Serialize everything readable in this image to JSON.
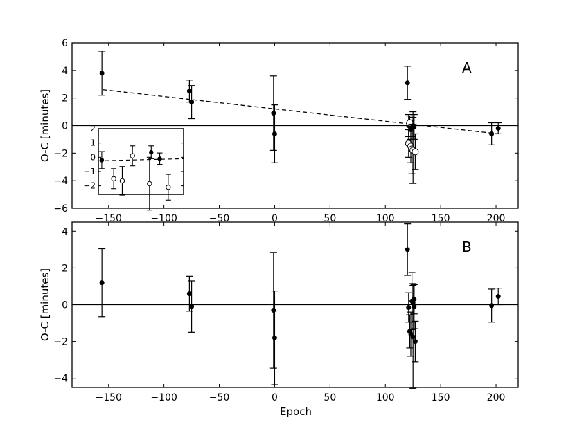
{
  "chart_data": [
    {
      "type": "scatter",
      "panel_label": "A",
      "xlabel": "",
      "ylabel": "O-C [minutes]",
      "xlim": [
        -183,
        220
      ],
      "ylim": [
        -6,
        6
      ],
      "xticks": [
        -150,
        -100,
        -50,
        0,
        50,
        100,
        150,
        200
      ],
      "yticks": [
        -6,
        -4,
        -2,
        0,
        2,
        4,
        6
      ],
      "zero_line": true,
      "fit_line": {
        "style": "dashed",
        "x": [
          -155,
          202
        ],
        "y": [
          2.6,
          -0.6
        ]
      },
      "series": [
        {
          "marker": "filled",
          "points": [
            {
              "x": -156,
              "y": 3.8,
              "err": 1.6
            },
            {
              "x": -77,
              "y": 2.5,
              "err": 0.8
            },
            {
              "x": -75,
              "y": 1.7,
              "err": 1.2
            },
            {
              "x": -1,
              "y": 0.9,
              "err": 2.7
            },
            {
              "x": 0,
              "y": -0.6,
              "err": 2.1
            },
            {
              "x": 120,
              "y": 3.1,
              "err": 1.2
            },
            {
              "x": 121,
              "y": 0.0,
              "err": 0.8
            },
            {
              "x": 123,
              "y": -0.3,
              "err": 0.7
            },
            {
              "x": 124,
              "y": -0.2,
              "err": 0.6
            },
            {
              "x": 125,
              "y": 0.0,
              "err": 1.0
            },
            {
              "x": 126,
              "y": -0.1,
              "err": 0.9
            },
            {
              "x": 196,
              "y": -0.6,
              "err": 0.8
            },
            {
              "x": 202,
              "y": -0.2,
              "err": 0.4
            }
          ]
        },
        {
          "marker": "open",
          "points": [
            {
              "x": 122,
              "y": 0.2,
              "err": 0.5
            },
            {
              "x": 121,
              "y": -1.3,
              "err": 1.0
            },
            {
              "x": 123,
              "y": -1.5,
              "err": 1.2
            },
            {
              "x": 124,
              "y": -1.7,
              "err": 1.8
            },
            {
              "x": 125,
              "y": -1.8,
              "err": 2.4
            },
            {
              "x": 127,
              "y": -1.9,
              "err": 1.3
            }
          ]
        }
      ],
      "inset": {
        "ylim": [
          -2.6,
          2
        ],
        "yticks": [
          -2,
          -1,
          0,
          1,
          2
        ],
        "fit_y": [
          -0.25,
          -0.1
        ],
        "points": [
          {
            "u": 0.04,
            "y": -0.2,
            "err": 0.6,
            "marker": "filled"
          },
          {
            "u": 0.18,
            "y": -1.5,
            "err": 0.7,
            "marker": "open"
          },
          {
            "u": 0.28,
            "y": -1.65,
            "err": 1.0,
            "marker": "open"
          },
          {
            "u": 0.4,
            "y": 0.1,
            "err": 0.7,
            "marker": "open"
          },
          {
            "u": 0.62,
            "y": 0.35,
            "err": 0.45,
            "marker": "filled"
          },
          {
            "u": 0.6,
            "y": -1.85,
            "err": 1.85,
            "marker": "open"
          },
          {
            "u": 0.72,
            "y": -0.1,
            "err": 0.4,
            "marker": "filled"
          },
          {
            "u": 0.82,
            "y": -2.1,
            "err": 0.9,
            "marker": "open"
          }
        ]
      }
    },
    {
      "type": "scatter",
      "panel_label": "B",
      "xlabel": "Epoch",
      "ylabel": "O-C [minutes]",
      "xlim": [
        -183,
        220
      ],
      "ylim": [
        -4.5,
        4.5
      ],
      "xticks": [
        -150,
        -100,
        -50,
        0,
        50,
        100,
        150,
        200
      ],
      "yticks": [
        -4,
        -2,
        0,
        2,
        4
      ],
      "zero_line": true,
      "series": [
        {
          "marker": "filled",
          "points": [
            {
              "x": -156,
              "y": 1.2,
              "err": 1.85
            },
            {
              "x": -77,
              "y": 0.6,
              "err": 0.95
            },
            {
              "x": -75,
              "y": -0.1,
              "err": 1.4
            },
            {
              "x": -1,
              "y": -0.3,
              "err": 3.15
            },
            {
              "x": 0,
              "y": -1.8,
              "err": 2.55
            },
            {
              "x": 120,
              "y": 3.0,
              "err": 1.4
            },
            {
              "x": 121,
              "y": -0.15,
              "err": 0.8
            },
            {
              "x": 122,
              "y": -1.45,
              "err": 0.9
            },
            {
              "x": 123,
              "y": -1.6,
              "err": 1.2
            },
            {
              "x": 124,
              "y": 0.2,
              "err": 1.55
            },
            {
              "x": 125,
              "y": 0.1,
              "err": 1.05
            },
            {
              "x": 125,
              "y": -1.75,
              "err": 2.8
            },
            {
              "x": 126,
              "y": -0.1,
              "err": 1.2
            },
            {
              "x": 127,
              "y": -2.0,
              "err": 1.1
            },
            {
              "x": 126,
              "y": 0.3,
              "err": 0.8
            },
            {
              "x": 196,
              "y": -0.05,
              "err": 0.9
            },
            {
              "x": 202,
              "y": 0.45,
              "err": 0.45
            }
          ]
        }
      ]
    }
  ]
}
